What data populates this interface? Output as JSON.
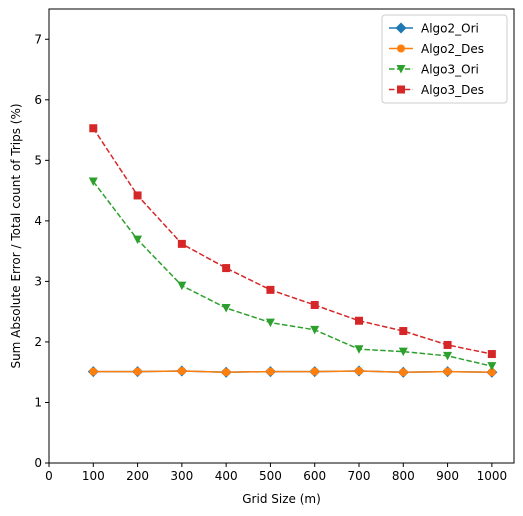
{
  "chart_data": {
    "type": "line",
    "title": "",
    "xlabel": "Grid Size (m)",
    "ylabel": "Sum Absolute Error / Total count of Trips (%)",
    "xlim": [
      0,
      1050
    ],
    "ylim": [
      0,
      7.5
    ],
    "xticks": [
      0,
      100,
      200,
      300,
      400,
      500,
      600,
      700,
      800,
      900,
      1000
    ],
    "yticks": [
      0,
      1,
      2,
      3,
      4,
      5,
      6,
      7
    ],
    "grid": false,
    "legend_position": "top-right",
    "x": [
      100,
      200,
      300,
      400,
      500,
      600,
      700,
      800,
      900,
      1000
    ],
    "series": [
      {
        "name": "Algo2_Ori",
        "color": "#1f77b4",
        "marker": "diamond",
        "dash": "solid",
        "values": [
          1.51,
          1.51,
          1.52,
          1.5,
          1.51,
          1.51,
          1.52,
          1.5,
          1.51,
          1.5
        ]
      },
      {
        "name": "Algo2_Des",
        "color": "#ff7f0e",
        "marker": "circle",
        "dash": "solid",
        "values": [
          1.51,
          1.51,
          1.52,
          1.5,
          1.51,
          1.51,
          1.52,
          1.5,
          1.51,
          1.5
        ]
      },
      {
        "name": "Algo3_Ori",
        "color": "#2ca02c",
        "marker": "triangle-down",
        "dash": "dashed",
        "values": [
          4.65,
          3.69,
          2.93,
          2.56,
          2.32,
          2.2,
          1.88,
          1.84,
          1.77,
          1.6
        ]
      },
      {
        "name": "Algo3_Des",
        "color": "#d62728",
        "marker": "square",
        "dash": "dashed",
        "values": [
          5.53,
          4.42,
          3.62,
          3.22,
          2.86,
          2.61,
          2.35,
          2.18,
          1.95,
          1.8
        ]
      }
    ]
  }
}
